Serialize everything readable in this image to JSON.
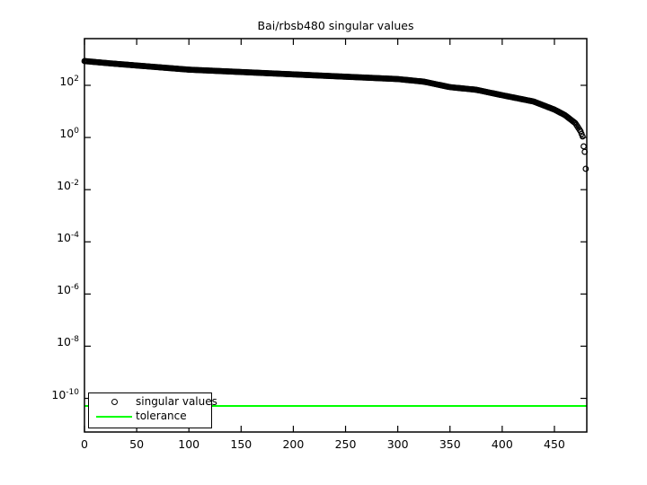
{
  "figure": {
    "title": "Bai/rbsb480 singular values",
    "background_color": "#ffffff",
    "axis_color": "#000000"
  },
  "legend": {
    "items": [
      {
        "label": "singular values",
        "marker": "circle",
        "color": "#000000"
      },
      {
        "label": "tolerance",
        "marker": "line",
        "color": "#00ff00"
      }
    ]
  },
  "chart_data": {
    "type": "scatter",
    "title": "Bai/rbsb480 singular values",
    "xlabel": "",
    "ylabel": "",
    "grid": false,
    "legend_position": "southwest",
    "x_axis": {
      "lim": [
        0,
        481
      ],
      "tick_values": [
        0,
        50,
        100,
        150,
        200,
        250,
        300,
        350,
        400,
        450
      ],
      "tick_labels": [
        "0",
        "50",
        "100",
        "150",
        "200",
        "250",
        "300",
        "350",
        "400",
        "450"
      ]
    },
    "y_axis": {
      "scale": "log10",
      "lim_log10": [
        -11.29,
        3.79
      ],
      "tick_exponents": [
        2,
        0,
        -2,
        -4,
        -6,
        -8,
        -10
      ],
      "tick_base": "10"
    },
    "series": [
      {
        "name": "singular values",
        "style": "hollow-circle-markers",
        "color": "#000000",
        "n_points": 481,
        "anchor_points_index_log10value": [
          [
            0,
            2.93
          ],
          [
            25,
            2.84
          ],
          [
            50,
            2.76
          ],
          [
            100,
            2.6
          ],
          [
            150,
            2.51
          ],
          [
            200,
            2.42
          ],
          [
            250,
            2.33
          ],
          [
            300,
            2.24
          ],
          [
            325,
            2.14
          ],
          [
            350,
            1.93
          ],
          [
            375,
            1.83
          ],
          [
            400,
            1.62
          ],
          [
            430,
            1.38
          ],
          [
            450,
            1.07
          ],
          [
            460,
            0.86
          ],
          [
            470,
            0.55
          ],
          [
            475,
            0.24
          ],
          [
            477,
            0.04
          ],
          [
            478,
            -0.34
          ],
          [
            479,
            -0.55
          ],
          [
            480,
            -1.2
          ]
        ]
      },
      {
        "name": "tolerance",
        "style": "horizontal-line",
        "color": "#00ff00",
        "value": 5e-11,
        "value_log10": -10.29
      }
    ]
  }
}
